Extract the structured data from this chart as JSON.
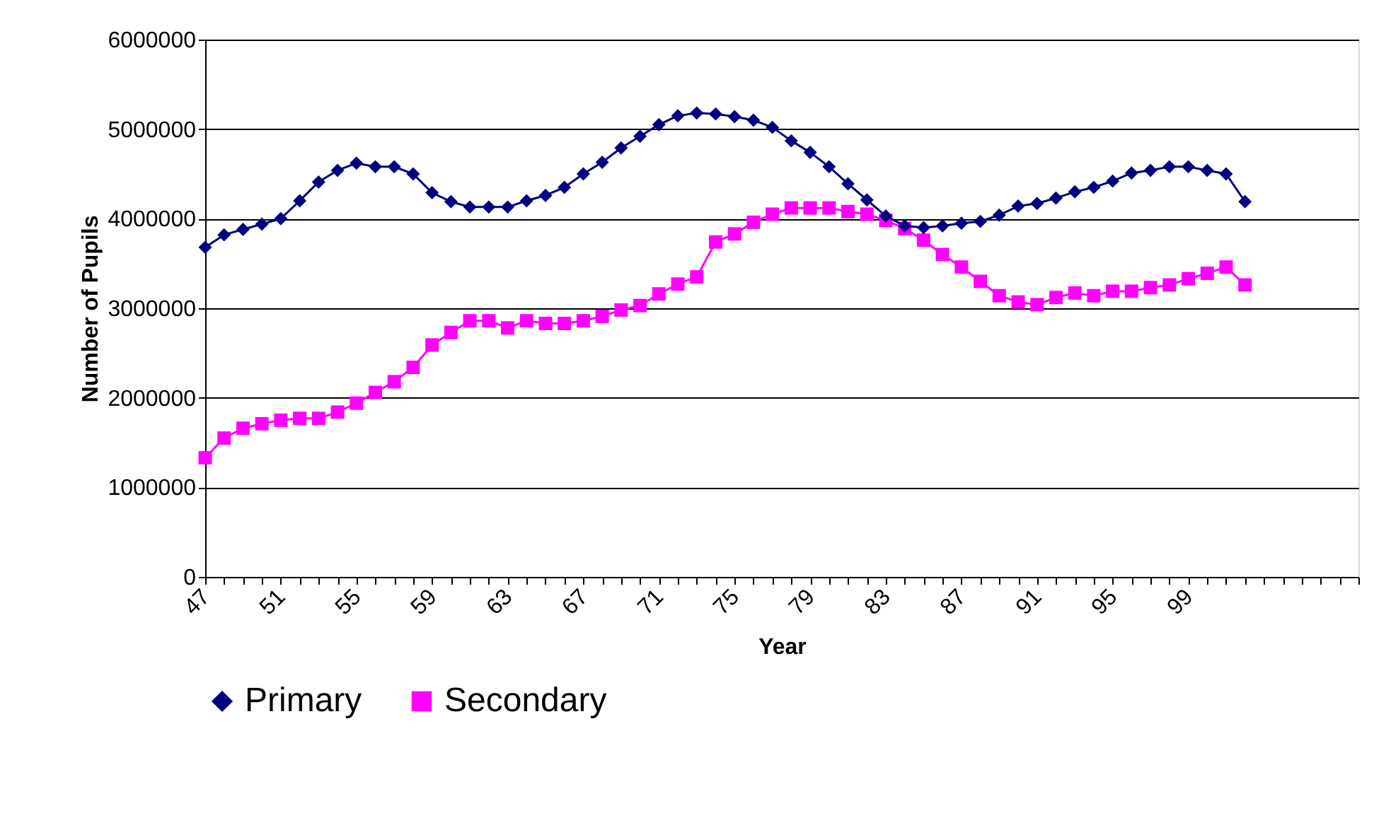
{
  "chart_data": {
    "type": "line",
    "xlabel": "Year",
    "ylabel": "Number of Pupils",
    "categories": [
      "47",
      null,
      null,
      null,
      "51",
      null,
      null,
      null,
      "55",
      null,
      null,
      null,
      "59",
      null,
      null,
      null,
      "63",
      null,
      null,
      null,
      "67",
      null,
      null,
      null,
      "71",
      null,
      null,
      null,
      "75",
      null,
      null,
      null,
      "79",
      null,
      null,
      null,
      "83",
      null,
      null,
      null,
      "87",
      null,
      null,
      null,
      "91",
      null,
      null,
      null,
      "95",
      null,
      null,
      null,
      "99",
      null,
      null,
      null,
      null,
      null,
      null,
      null,
      null,
      null
    ],
    "series": [
      {
        "name": "Primary",
        "color": "#000080",
        "marker": "diamond",
        "values": [
          3680000,
          3820000,
          3880000,
          3940000,
          4000000,
          4200000,
          4410000,
          4540000,
          4620000,
          4580000,
          4580000,
          4500000,
          4290000,
          4190000,
          4130000,
          4130000,
          4130000,
          4200000,
          4260000,
          4350000,
          4500000,
          4630000,
          4790000,
          4920000,
          5050000,
          5150000,
          5180000,
          5170000,
          5140000,
          5100000,
          5020000,
          4870000,
          4740000,
          4580000,
          4390000,
          4210000,
          4030000,
          3920000,
          3900000,
          3920000,
          3950000,
          3970000,
          4040000,
          4140000,
          4170000,
          4230000,
          4300000,
          4350000,
          4420000,
          4510000,
          4540000,
          4580000,
          4580000,
          4540000,
          4500000,
          4190000,
          null,
          null,
          null,
          null,
          null,
          null
        ]
      },
      {
        "name": "Secondary",
        "color": "#ff00ff",
        "marker": "square",
        "values": [
          1330000,
          1550000,
          1660000,
          1710000,
          1750000,
          1770000,
          1770000,
          1840000,
          1940000,
          2060000,
          2180000,
          2340000,
          2590000,
          2730000,
          2860000,
          2860000,
          2780000,
          2860000,
          2830000,
          2830000,
          2860000,
          2910000,
          2980000,
          3030000,
          3160000,
          3270000,
          3350000,
          3740000,
          3830000,
          3960000,
          4050000,
          4120000,
          4120000,
          4120000,
          4080000,
          4050000,
          3980000,
          3890000,
          3760000,
          3600000,
          3460000,
          3300000,
          3140000,
          3070000,
          3040000,
          3120000,
          3170000,
          3140000,
          3190000,
          3190000,
          3230000,
          3260000,
          3330000,
          3390000,
          3460000,
          3260000,
          null,
          null,
          null,
          null,
          null,
          null
        ]
      }
    ],
    "ylim": [
      0,
      6000000
    ],
    "yticks": [
      0,
      1000000,
      2000000,
      3000000,
      4000000,
      5000000,
      6000000
    ],
    "grid": "y",
    "legend": "bottom",
    "line_style": "solid"
  }
}
